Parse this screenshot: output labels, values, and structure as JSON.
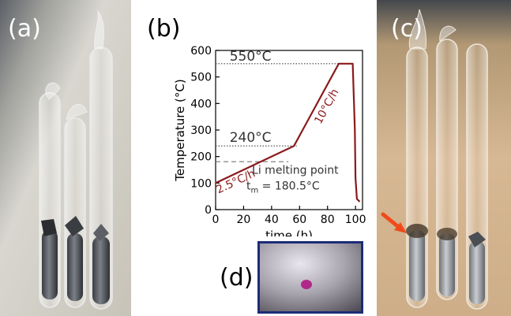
{
  "panels": {
    "a": {
      "label": "(a)"
    },
    "b": {
      "label": "(b)"
    },
    "c": {
      "label": "(c)"
    },
    "d": {
      "label": "(d)"
    }
  },
  "colors": {
    "profile": "#8b1a1a",
    "arrow": "#f04a1c",
    "frame_d": "#1c2c78"
  },
  "chart_data": {
    "type": "line",
    "xlabel": "time (h)",
    "ylabel": "Temperature (°C)",
    "xlim": [
      0,
      105
    ],
    "ylim": [
      0,
      600
    ],
    "xticks": [
      "0",
      "20",
      "40",
      "60",
      "80",
      "100"
    ],
    "yticks": [
      "0",
      "100",
      "200",
      "300",
      "400",
      "500",
      "600"
    ],
    "grid": false,
    "series": [
      {
        "x": [
          0,
          56,
          88,
          98,
          99.5,
          100,
          101,
          103
        ],
        "y": [
          100,
          240,
          550,
          550,
          300,
          120,
          40,
          30
        ]
      }
    ],
    "reference_lines": [
      {
        "y": 550,
        "label": "550°C",
        "style": "dotted"
      },
      {
        "y": 240,
        "label": "240°C",
        "style": "dotted"
      },
      {
        "y": 180.5,
        "style": "dashed"
      }
    ],
    "annotations": {
      "rate_slow": "2.5°C/h",
      "rate_fast": "10°C/h",
      "melting_title": "Li melting point",
      "melting_symbol": "t",
      "melting_subscript": "m",
      "melting_value": " = 180.5°C"
    }
  }
}
